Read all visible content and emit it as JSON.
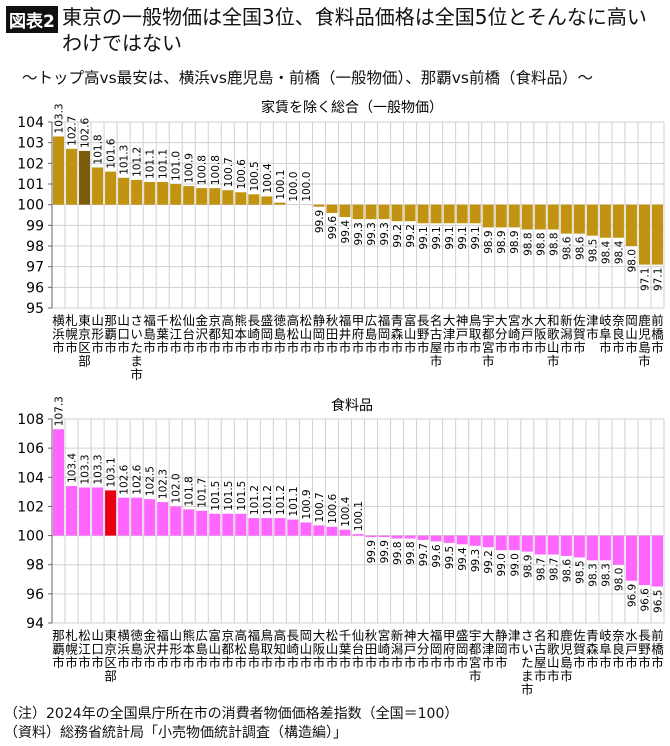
{
  "header": {
    "badge": "図表2",
    "title": "東京の一般物価は全国3位、食料品価格は全国5位とそんなに高いわけではない",
    "subtitle": "〜トップ高vs最安は、横浜vs鹿児島・前橋（一般物価）、那覇vs前橋（食料品）〜"
  },
  "chart_data": [
    {
      "type": "bar",
      "title": "家賃を除く総合（一般物価）",
      "ylim": [
        95,
        104
      ],
      "yticks": [
        95,
        96,
        97,
        98,
        99,
        100,
        101,
        102,
        103,
        104
      ],
      "baseline": 100,
      "grid": true,
      "colors": {
        "bar": "#c29311",
        "highlight": "#7a5c0a"
      },
      "highlight": "東京区部",
      "categories": [
        "横浜市",
        "札幌市",
        "東京区部",
        "山形市",
        "那覇市",
        "山口市",
        "さいたま市",
        "福島市",
        "千葉市",
        "松江市",
        "仙台市",
        "金沢市",
        "京都市",
        "高知市",
        "熊本市",
        "長崎市",
        "盛岡市",
        "徳島市",
        "高松市",
        "松山市",
        "静岡市",
        "秋田市",
        "福井市",
        "甲府市",
        "広島市",
        "福岡市",
        "青森市",
        "富山市",
        "長野市",
        "名古屋市",
        "大津市",
        "神戸市",
        "鳥取市",
        "宇都宮市",
        "大分市",
        "宮崎市",
        "水戸市",
        "大阪市",
        "和歌山市",
        "新潟市",
        "佐賀市",
        "津市",
        "岐阜市",
        "奈良市",
        "岡山市",
        "鹿児島市",
        "前橋市"
      ],
      "values": [
        103.3,
        102.7,
        102.6,
        101.8,
        101.6,
        101.3,
        101.2,
        101.1,
        101.1,
        101.0,
        100.9,
        100.8,
        100.8,
        100.7,
        100.6,
        100.5,
        100.4,
        100.1,
        100.0,
        100.0,
        99.9,
        99.6,
        99.4,
        99.3,
        99.3,
        99.3,
        99.2,
        99.2,
        99.1,
        99.1,
        99.1,
        99.1,
        99.1,
        98.9,
        98.9,
        98.9,
        98.8,
        98.8,
        98.8,
        98.6,
        98.6,
        98.5,
        98.4,
        98.4,
        98.0,
        97.1,
        97.1
      ]
    },
    {
      "type": "bar",
      "title": "食料品",
      "ylim": [
        94,
        108
      ],
      "yticks": [
        94,
        96,
        98,
        100,
        102,
        104,
        106,
        108
      ],
      "baseline": 100,
      "grid": true,
      "colors": {
        "bar": "#ff66ff",
        "highlight": "#e60012"
      },
      "highlight": "東京区部",
      "categories": [
        "那覇市",
        "札幌市",
        "松江市",
        "山口市",
        "東京区部",
        "横浜市",
        "徳島市",
        "金沢市",
        "福井市",
        "山形市",
        "熊本市",
        "広島市",
        "富山市",
        "京都市",
        "高松市",
        "福島市",
        "鳥取市",
        "高知市",
        "長崎市",
        "岡山市",
        "大阪市",
        "松山市",
        "千葉市",
        "仙台市",
        "秋田市",
        "宮崎市",
        "新潟市",
        "神戸市",
        "大分市",
        "福岡市",
        "甲府市",
        "盛岡市",
        "宇都宮市",
        "大津市",
        "静岡市",
        "津市",
        "さいたま市",
        "名古屋市",
        "和歌山市",
        "鹿児島市",
        "佐賀市",
        "青森市",
        "岐阜市",
        "奈良市",
        "水戸市",
        "長野市",
        "前橋市"
      ],
      "values": [
        107.3,
        103.4,
        103.3,
        103.3,
        103.1,
        102.6,
        102.6,
        102.5,
        102.3,
        102.0,
        101.8,
        101.7,
        101.5,
        101.5,
        101.5,
        101.2,
        101.2,
        101.2,
        101.1,
        100.9,
        100.7,
        100.6,
        100.4,
        100.1,
        99.9,
        99.9,
        99.8,
        99.8,
        99.7,
        99.6,
        99.5,
        99.4,
        99.3,
        99.2,
        99.0,
        99.0,
        98.9,
        98.7,
        98.7,
        98.6,
        98.5,
        98.3,
        98.3,
        98.0,
        96.9,
        96.6,
        96.5
      ]
    }
  ],
  "notes": {
    "note": "（注）2024年の全国県庁所在市の消費者物価価格差指数（全国＝100）",
    "source": "（資料）総務省統計局「小売物価統計調査（構造編）」"
  }
}
